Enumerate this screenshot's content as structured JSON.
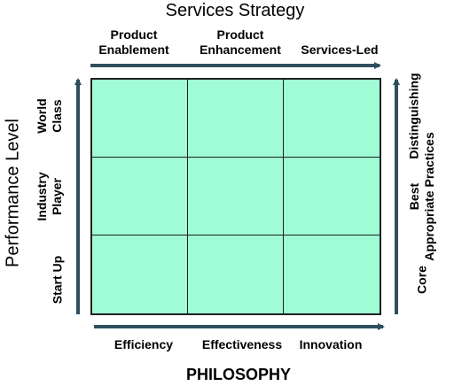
{
  "top_title": "Services Strategy",
  "columns": [
    {
      "line1": "Product",
      "line2": "Enablement"
    },
    {
      "line1": "Product",
      "line2": "Enhancement"
    },
    {
      "line1": "Services-Led",
      "line2": ""
    }
  ],
  "left_title": "Performance Level",
  "rows": [
    {
      "line1": "World",
      "line2": "Class"
    },
    {
      "line1": "Industry",
      "line2": "Player"
    },
    {
      "line1": "Start Up",
      "line2": ""
    }
  ],
  "right_labels": [
    {
      "line1": "Distinguishing",
      "line2": ""
    },
    {
      "line1": "Best",
      "line2": "Appropriate Practices"
    },
    {
      "line1": "Core",
      "line2": ""
    }
  ],
  "bottom_labels": [
    "Efficiency",
    "Effectiveness",
    "Innovation"
  ],
  "bottom_title": "PHILOSOPHY",
  "colors": {
    "grid_fill": "#9ffcd4",
    "arrow": "#2f4f5f",
    "grid_line": "#1f1f1f"
  }
}
